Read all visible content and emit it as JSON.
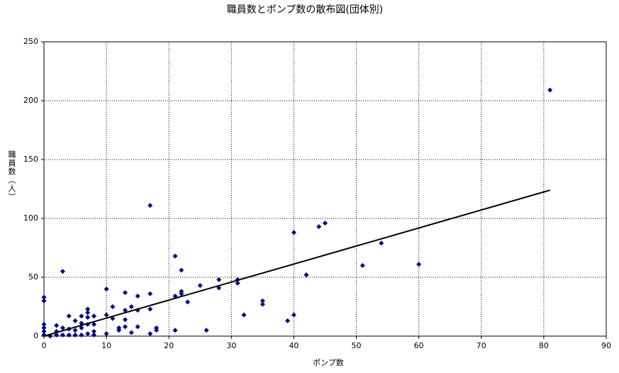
{
  "chart_data": {
    "type": "scatter",
    "title": "職員数とポンプ数の散布図(団体別)",
    "x_label": "ポンプ数",
    "y_label": "職員数（人）",
    "xlim": [
      0,
      90
    ],
    "xticks": [
      0,
      10,
      20,
      30,
      40,
      50,
      60,
      70,
      80,
      90
    ],
    "ylim": [
      0,
      250
    ],
    "yticks": [
      0,
      50,
      100,
      150,
      200,
      250
    ],
    "grid": true,
    "color": "#000080",
    "x": [
      81,
      17,
      3,
      40,
      44,
      45,
      54,
      51,
      60,
      42,
      21,
      22,
      25,
      28,
      28,
      31,
      31,
      32,
      35,
      35,
      39,
      40,
      26,
      21,
      21,
      22,
      22,
      23,
      18,
      18,
      17,
      17,
      17,
      15,
      15,
      15,
      14,
      14,
      13,
      13,
      13,
      13,
      12,
      12,
      11,
      11,
      10,
      10,
      10,
      8,
      8,
      8,
      8,
      7,
      7,
      7,
      7,
      7,
      6,
      6,
      6,
      6,
      5,
      5,
      5,
      4,
      4,
      4,
      3,
      3,
      2,
      2,
      2,
      1,
      0,
      0,
      0,
      0,
      0,
      0
    ],
    "values": [
      209,
      111,
      55,
      88,
      93,
      96,
      79,
      60,
      61,
      52,
      68,
      56,
      43,
      48,
      41,
      48,
      45,
      18,
      30,
      27,
      13,
      18,
      5,
      5,
      34,
      36,
      38,
      29,
      7,
      5,
      36,
      23,
      2,
      34,
      22,
      8,
      25,
      3,
      37,
      22,
      14,
      8,
      7,
      5,
      25,
      15,
      40,
      18,
      2,
      17,
      10,
      4,
      1,
      23,
      20,
      16,
      10,
      2,
      17,
      11,
      7,
      1,
      13,
      5,
      1,
      17,
      6,
      1,
      7,
      1,
      9,
      4,
      1,
      0,
      33,
      30,
      10,
      7,
      4,
      1
    ],
    "trend_line": {
      "color": "#000000",
      "x": [
        0,
        81
      ],
      "values": [
        0,
        124
      ]
    }
  }
}
